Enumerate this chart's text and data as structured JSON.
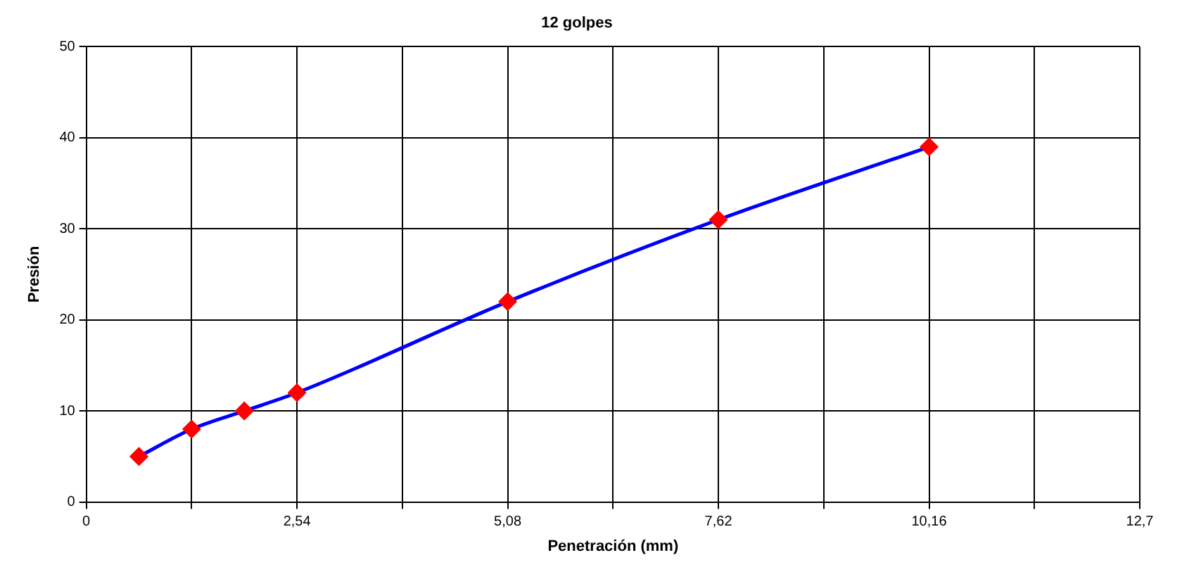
{
  "chart_data": {
    "type": "line",
    "title": "12 golpes",
    "xlabel": "Penetración (mm)",
    "ylabel": "Presión",
    "x": [
      0.635,
      1.27,
      1.905,
      2.54,
      5.08,
      7.62,
      10.16
    ],
    "series": [
      {
        "color": "#0000ff",
        "colors": [
          "#ff0000",
          "#ff0000",
          "#ff0000",
          "#ff0000",
          "#ff0000",
          "#ff0000",
          "#ff0000"
        ],
        "values": [
          5,
          8,
          10,
          12,
          22,
          31,
          39
        ]
      }
    ],
    "marker": "diamond",
    "line_style": "solid",
    "grid": true,
    "legend": false,
    "xlim": [
      0,
      12.7
    ],
    "xticks": [
      0,
      {
        "value": 1.27,
        "label": null
      },
      {
        "value": 2.54,
        "label": "2,54"
      },
      {
        "value": 3.81,
        "label": null
      },
      {
        "value": 5.08,
        "label": "5,08"
      },
      {
        "value": 6.35,
        "label": null
      },
      {
        "value": 7.62,
        "label": "7,62"
      },
      {
        "value": 8.89,
        "label": null
      },
      {
        "value": 10.16,
        "label": "10,16"
      },
      {
        "value": 11.43,
        "label": null
      },
      {
        "value": 12.7,
        "label": "12,7"
      }
    ],
    "ylim": [
      0,
      50
    ],
    "yticks": [
      0,
      10,
      20,
      30,
      40,
      50
    ]
  }
}
